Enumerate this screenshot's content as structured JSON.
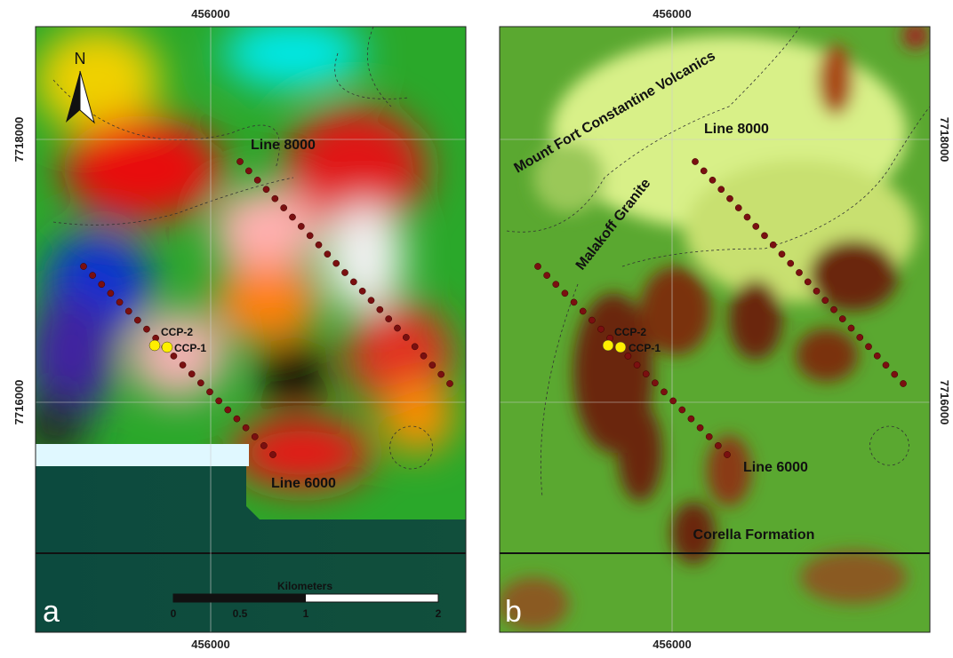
{
  "panels": [
    {
      "label": "a",
      "top_tick": "456000",
      "bottom_tick": "456000",
      "y_ticks": [
        "7718000",
        "7716000"
      ],
      "north": "N",
      "lines": [
        "Line 8000",
        "Line 6000"
      ],
      "points": [
        "CCP-2",
        "CCP-1"
      ],
      "scale": {
        "title": "Kilometers",
        "labels": [
          "0",
          "0.5",
          "1",
          "2"
        ]
      }
    },
    {
      "label": "b",
      "top_tick": "456000",
      "bottom_tick": "456000",
      "y_ticks": [
        "7718000",
        "7716000"
      ],
      "lines": [
        "Line 8000",
        "Line 6000"
      ],
      "points": [
        "CCP-2",
        "CCP-1"
      ],
      "units": [
        "Mount Fort Constantine Volcanics",
        "Malakoff Granite",
        "Corella Formation"
      ]
    }
  ]
}
